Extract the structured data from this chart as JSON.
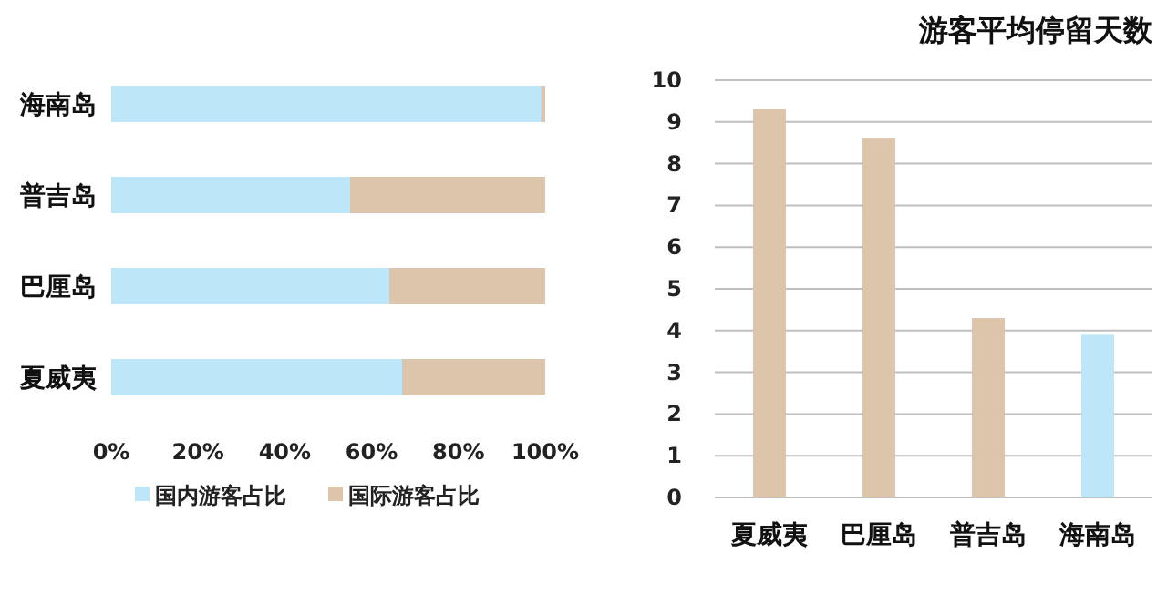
{
  "chart_data": [
    {
      "type": "bar",
      "orientation": "horizontal",
      "stacked": true,
      "categories": [
        "海南岛",
        "普吉岛",
        "巴厘岛",
        "夏威夷"
      ],
      "series": [
        {
          "name": "国内游客占比",
          "color": "#bde6f8",
          "values": [
            99,
            55,
            64,
            67
          ]
        },
        {
          "name": "国际游客占比",
          "color": "#dcc5ab",
          "values": [
            1,
            45,
            36,
            33
          ]
        }
      ],
      "xlim": [
        0,
        100
      ],
      "xticks": [
        {
          "value": 0,
          "label": "0%"
        },
        {
          "value": 20,
          "label": "20%"
        },
        {
          "value": 40,
          "label": "40%"
        },
        {
          "value": 60,
          "label": "60%"
        },
        {
          "value": 80,
          "label": "80%"
        },
        {
          "value": 100,
          "label": "100%"
        }
      ],
      "grid": false,
      "legend": "bottom"
    },
    {
      "type": "bar",
      "title": "游客平均停留天数",
      "categories": [
        "夏威夷",
        "巴厘岛",
        "普吉岛",
        "海南岛"
      ],
      "values": [
        9.3,
        8.6,
        4.3,
        3.9
      ],
      "colors": [
        "#dcc5ab",
        "#dcc5ab",
        "#dcc5ab",
        "#bde6f8"
      ],
      "ylim": [
        0,
        10
      ],
      "yticks": [
        0,
        1,
        2,
        3,
        4,
        5,
        6,
        7,
        8,
        9,
        10
      ],
      "grid": "y"
    }
  ]
}
